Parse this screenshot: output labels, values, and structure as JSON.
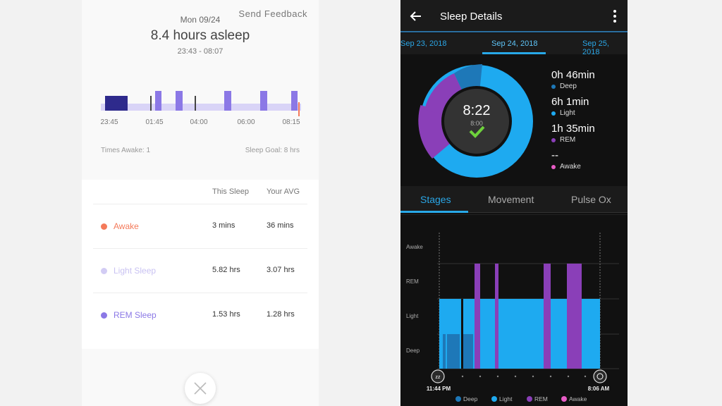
{
  "left": {
    "send_feedback": "Send Feedback",
    "date": "Mon 09/24",
    "hours_asleep": "8.4 hours asleep",
    "time_range": "23:43 - 08:07",
    "time_ticks": [
      "23:45",
      "01:45",
      "04:00",
      "06:00",
      "08:15"
    ],
    "times_awake": "Times Awake: 1",
    "sleep_goal": "Sleep Goal: 8 hrs",
    "table": {
      "col_this": "This Sleep",
      "col_avg": "Your AVG",
      "rows": [
        {
          "label": "Awake",
          "this": "3 mins",
          "avg": "36 mins",
          "color": "#f47a5a"
        },
        {
          "label": "Light Sleep",
          "this": "5.82 hrs",
          "avg": "3.07 hrs",
          "color": "#d2ccf4"
        },
        {
          "label": "REM Sleep",
          "this": "1.53 hrs",
          "avg": "1.28 hrs",
          "color": "#8b78e6"
        }
      ]
    },
    "close_icon": "close-icon"
  },
  "right": {
    "title": "Sleep Details",
    "dates": [
      "Sep 23, 2018",
      "Sep 24, 2018",
      "Sep 25, 2018"
    ],
    "selected_date": "Sep 24, 2018",
    "total_time": "8:22",
    "goal_time": "8:00",
    "stats": [
      {
        "value": "0h 46min",
        "label": "Deep",
        "color": "#1e78b8"
      },
      {
        "value": "6h 1min",
        "label": "Light",
        "color": "#1eaaf0"
      },
      {
        "value": "1h 35min",
        "label": "REM",
        "color": "#8a3fb8"
      },
      {
        "value": "--",
        "label": "Awake",
        "color": "#e85cc6"
      }
    ],
    "tabs": [
      "Stages",
      "Movement",
      "Pulse Ox"
    ],
    "active_tab": "Stages",
    "chart": {
      "y_labels": [
        "Awake",
        "REM",
        "Light",
        "Deep"
      ],
      "start_time": "11:44 PM",
      "end_time": "8:06 AM",
      "legend": [
        "Deep",
        "Light",
        "REM",
        "Awake"
      ]
    },
    "colors": {
      "deep": "#1e78b8",
      "light": "#1eaaf0",
      "rem": "#8a3fb8",
      "awake": "#e85cc6"
    }
  }
}
